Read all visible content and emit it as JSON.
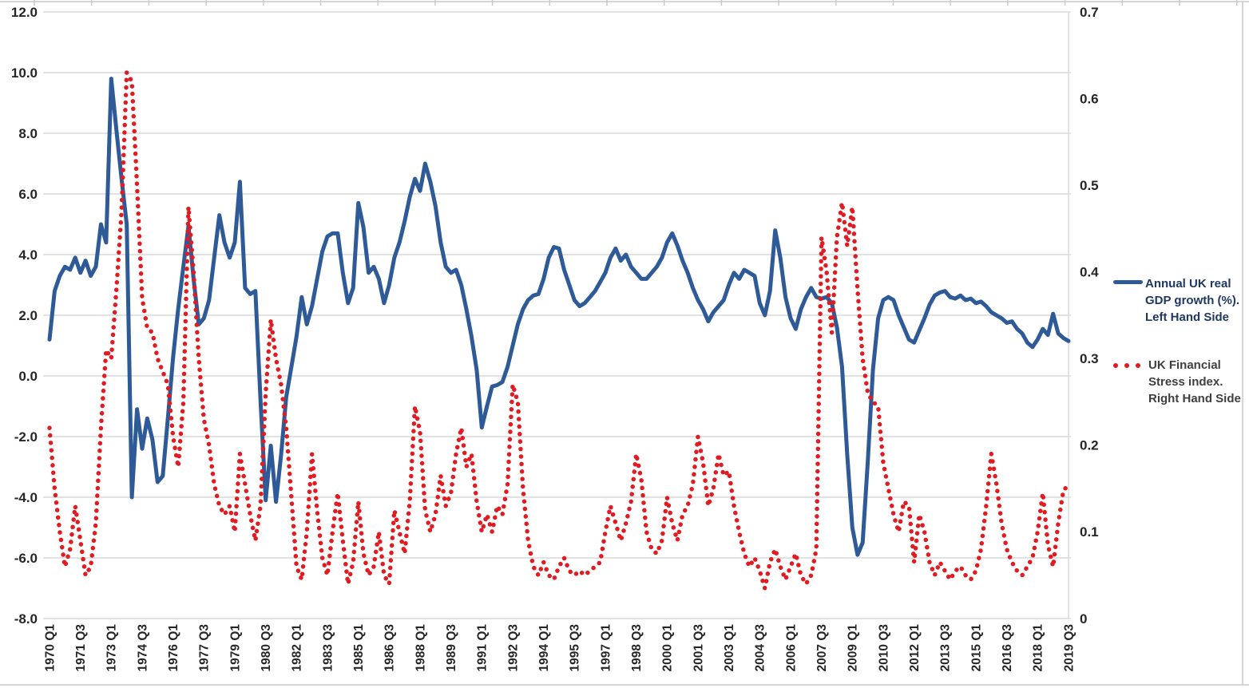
{
  "chart_data": {
    "type": "line",
    "title": "",
    "grid": true,
    "left_axis": {
      "min": -8,
      "max": 12,
      "step": 2,
      "tick_labels": [
        "12.0",
        "10.0",
        "8.0",
        "6.0",
        "4.0",
        "2.0",
        "0.0",
        "-2.0",
        "-4.0",
        "-6.0",
        "-8.0"
      ],
      "tick_values": [
        12,
        10,
        8,
        6,
        4,
        2,
        0,
        -2,
        -4,
        -6,
        -8
      ]
    },
    "right_axis": {
      "min": 0,
      "max": 0.7,
      "step": 0.1,
      "tick_labels": [
        "0.7",
        "0.6",
        "0.5",
        "0.4",
        "0.3",
        "0.2",
        "0.1",
        "0"
      ],
      "tick_values": [
        0.7,
        0.6,
        0.5,
        0.4,
        0.3,
        0.2,
        0.1,
        0
      ]
    },
    "x_axis": {
      "start": "1970 Q1",
      "end": "2019 Q3",
      "frequency": "quarterly",
      "labels_every_n_points": 6,
      "tick_labels": [
        "1970 Q1",
        "1971 Q3",
        "1973 Q1",
        "1974 Q3",
        "1976 Q1",
        "1977 Q3",
        "1979 Q1",
        "1980 Q3",
        "1982 Q1",
        "1983 Q3",
        "1985 Q1",
        "1986 Q3",
        "1988 Q1",
        "1989 Q3",
        "1991 Q1",
        "1992 Q3",
        "1994 Q1",
        "1995 Q3",
        "1997 Q1",
        "1998 Q3",
        "2000 Q1",
        "2001 Q3",
        "2003 Q1",
        "2004 Q3",
        "2006 Q1",
        "2007 Q3",
        "2009 Q1",
        "2010 Q3",
        "2012 Q1",
        "2013 Q3",
        "2015 Q1",
        "2016 Q3",
        "2018 Q1",
        "2019 Q3"
      ]
    },
    "series": [
      {
        "name": "Annual UK real GDP growth (%). Left Hand Side",
        "axis": "left",
        "style": "solid",
        "color": "#2e5b97",
        "values": [
          1.2,
          2.8,
          3.3,
          3.6,
          3.5,
          3.9,
          3.4,
          3.8,
          3.3,
          3.6,
          5.0,
          4.4,
          9.8,
          8.1,
          6.5,
          5.0,
          -4.0,
          -1.1,
          -2.4,
          -1.4,
          -2.1,
          -3.5,
          -3.3,
          -1.4,
          0.6,
          2.2,
          3.6,
          4.95,
          3.2,
          1.7,
          1.9,
          2.5,
          3.9,
          5.3,
          4.4,
          3.9,
          4.4,
          6.4,
          2.9,
          2.7,
          2.8,
          -0.8,
          -4.1,
          -2.3,
          -4.15,
          -2.6,
          -0.7,
          0.3,
          1.3,
          2.6,
          1.7,
          2.3,
          3.2,
          4.1,
          4.6,
          4.7,
          4.7,
          3.4,
          2.4,
          2.9,
          5.7,
          4.9,
          3.4,
          3.6,
          3.2,
          2.4,
          3.0,
          3.9,
          4.4,
          5.1,
          5.9,
          6.5,
          6.1,
          7.0,
          6.4,
          5.6,
          4.4,
          3.6,
          3.4,
          3.5,
          3.0,
          2.2,
          1.3,
          0.2,
          -1.7,
          -1.0,
          -0.35,
          -0.3,
          -0.2,
          0.3,
          1.0,
          1.7,
          2.2,
          2.5,
          2.65,
          2.7,
          3.2,
          3.9,
          4.25,
          4.2,
          3.5,
          3.0,
          2.5,
          2.3,
          2.4,
          2.6,
          2.8,
          3.1,
          3.4,
          3.9,
          4.2,
          3.8,
          4.0,
          3.6,
          3.4,
          3.2,
          3.2,
          3.4,
          3.6,
          3.9,
          4.4,
          4.7,
          4.3,
          3.8,
          3.4,
          2.9,
          2.5,
          2.2,
          1.8,
          2.1,
          2.3,
          2.5,
          3.0,
          3.4,
          3.2,
          3.5,
          3.4,
          3.3,
          2.4,
          2.0,
          2.8,
          4.8,
          3.9,
          2.6,
          1.9,
          1.55,
          2.2,
          2.6,
          2.9,
          2.6,
          2.55,
          2.6,
          2.4,
          1.6,
          0.3,
          -2.6,
          -5.0,
          -5.9,
          -5.5,
          -2.8,
          0.2,
          1.9,
          2.5,
          2.6,
          2.5,
          2.0,
          1.6,
          1.2,
          1.1,
          1.5,
          1.9,
          2.35,
          2.65,
          2.75,
          2.8,
          2.6,
          2.55,
          2.65,
          2.5,
          2.55,
          2.4,
          2.45,
          2.3,
          2.1,
          2.0,
          1.9,
          1.75,
          1.8,
          1.55,
          1.4,
          1.1,
          0.95,
          1.2,
          1.55,
          1.35,
          2.05,
          1.4,
          1.25,
          1.15
        ]
      },
      {
        "name": "UK Financial Stress index. Right Hand Side",
        "axis": "right",
        "style": "dotted",
        "color": "#e11b22",
        "values": [
          0.22,
          0.15,
          0.1,
          0.06,
          0.08,
          0.13,
          0.09,
          0.05,
          0.06,
          0.11,
          0.22,
          0.31,
          0.3,
          0.38,
          0.47,
          0.63,
          0.62,
          0.5,
          0.37,
          0.335,
          0.33,
          0.3,
          0.285,
          0.27,
          0.21,
          0.175,
          0.25,
          0.475,
          0.4,
          0.3,
          0.23,
          0.2,
          0.155,
          0.13,
          0.12,
          0.13,
          0.1,
          0.19,
          0.155,
          0.12,
          0.09,
          0.13,
          0.26,
          0.345,
          0.3,
          0.27,
          0.22,
          0.14,
          0.06,
          0.045,
          0.1,
          0.19,
          0.125,
          0.07,
          0.05,
          0.1,
          0.145,
          0.09,
          0.04,
          0.065,
          0.135,
          0.075,
          0.05,
          0.06,
          0.1,
          0.05,
          0.04,
          0.125,
          0.1,
          0.075,
          0.135,
          0.245,
          0.215,
          0.125,
          0.1,
          0.12,
          0.165,
          0.13,
          0.145,
          0.19,
          0.22,
          0.175,
          0.19,
          0.135,
          0.1,
          0.12,
          0.1,
          0.13,
          0.12,
          0.155,
          0.27,
          0.25,
          0.15,
          0.09,
          0.06,
          0.05,
          0.065,
          0.05,
          0.045,
          0.06,
          0.07,
          0.055,
          0.05,
          0.055,
          0.05,
          0.055,
          0.06,
          0.065,
          0.1,
          0.13,
          0.11,
          0.09,
          0.11,
          0.135,
          0.19,
          0.16,
          0.1,
          0.08,
          0.075,
          0.09,
          0.14,
          0.11,
          0.09,
          0.12,
          0.13,
          0.155,
          0.21,
          0.18,
          0.13,
          0.15,
          0.19,
          0.165,
          0.17,
          0.13,
          0.1,
          0.075,
          0.06,
          0.07,
          0.055,
          0.035,
          0.065,
          0.08,
          0.06,
          0.045,
          0.06,
          0.075,
          0.05,
          0.04,
          0.05,
          0.08,
          0.44,
          0.4,
          0.33,
          0.44,
          0.48,
          0.43,
          0.475,
          0.38,
          0.3,
          0.26,
          0.25,
          0.245,
          0.18,
          0.15,
          0.12,
          0.1,
          0.135,
          0.13,
          0.065,
          0.12,
          0.1,
          0.065,
          0.05,
          0.065,
          0.055,
          0.045,
          0.055,
          0.06,
          0.05,
          0.045,
          0.055,
          0.08,
          0.13,
          0.19,
          0.155,
          0.11,
          0.08,
          0.065,
          0.055,
          0.05,
          0.06,
          0.07,
          0.1,
          0.145,
          0.085,
          0.06,
          0.11,
          0.148,
          0.154
        ]
      }
    ],
    "legend": {
      "position": "right",
      "gdp": {
        "lines": [
          "Annual UK real",
          "GDP growth (%).",
          "Left Hand Side"
        ],
        "text_color": "#1f3864",
        "sample_color": "#2e5b97"
      },
      "stress": {
        "lines": [
          "UK Financial",
          "Stress index.",
          "Right Hand Side"
        ],
        "text_color": "#3f3f3f",
        "sample_color": "#e11b22"
      }
    },
    "colors": {
      "gridline": "#d9d9d9",
      "axis_text": "#262626",
      "sheet_line": "#c9c9c9"
    }
  }
}
